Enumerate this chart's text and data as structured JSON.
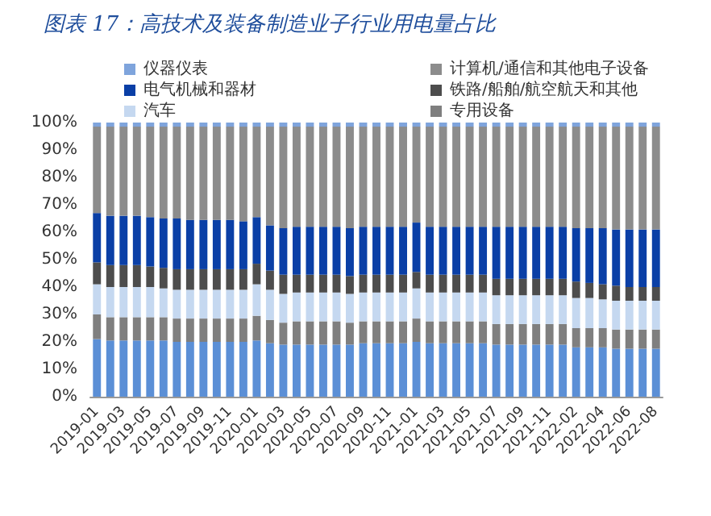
{
  "chart_data": {
    "type": "bar",
    "title": "图表 17：高技术及装备制造业子行业用电量占比",
    "stacked": true,
    "legend": "top",
    "grid": false,
    "categories": [
      "2019-01",
      null,
      "2019-03",
      null,
      "2019-05",
      null,
      "2019-07",
      null,
      "2019-09",
      null,
      "2019-11",
      null,
      "2020-01",
      null,
      "2020-03",
      null,
      "2020-05",
      null,
      "2020-07",
      null,
      "2020-09",
      null,
      "2020-11",
      null,
      "2021-01",
      null,
      "2021-03",
      null,
      "2021-05",
      null,
      "2021-07",
      null,
      "2021-09",
      null,
      "2021-11",
      null,
      "2022-02",
      null,
      "2022-04",
      null,
      "2022-06",
      null,
      "2022-08"
    ],
    "ylim": [
      0,
      100
    ],
    "yticks": [
      {
        "value": 0,
        "label": "0%"
      },
      {
        "value": 10,
        "label": "10%"
      },
      {
        "value": 20,
        "label": "20%"
      },
      {
        "value": 30,
        "label": "30%"
      },
      {
        "value": 40,
        "label": "40%"
      },
      {
        "value": 50,
        "label": "50%"
      },
      {
        "value": 60,
        "label": "60%"
      },
      {
        "value": 70,
        "label": "70%"
      },
      {
        "value": 80,
        "label": "80%"
      },
      {
        "value": 90,
        "label": "90%"
      },
      {
        "value": 100,
        "label": "100%"
      }
    ],
    "series": [
      {
        "color": "#5b8fd6",
        "values": [
          21,
          20.5,
          20.5,
          20.5,
          20.5,
          20.5,
          20,
          20,
          20,
          20,
          20,
          20,
          20.5,
          19.5,
          19,
          19,
          19,
          19,
          19,
          19,
          19.5,
          19.5,
          19.5,
          19.5,
          20,
          19.5,
          19.5,
          19.5,
          19.5,
          19.5,
          19,
          19,
          19,
          19,
          19,
          19,
          18,
          18,
          18,
          17.5,
          17.5,
          17.5,
          17.5
        ]
      },
      {
        "name": "专用设备",
        "color": "#7f7f7f",
        "values": [
          9,
          8.5,
          8.5,
          8.5,
          8.5,
          8.5,
          8.5,
          8.5,
          8.5,
          8.5,
          8.5,
          8.5,
          9,
          8.5,
          8,
          8.5,
          8.5,
          8.5,
          8.5,
          8,
          8,
          8,
          8,
          8,
          8.5,
          8,
          8,
          8,
          8,
          8,
          7.5,
          7.5,
          7.5,
          7.5,
          7.5,
          7.5,
          7,
          7,
          7,
          7,
          7,
          7,
          7
        ]
      },
      {
        "name": "汽车",
        "color": "#c5d8f0",
        "values": [
          11,
          11,
          11,
          11,
          11,
          10.5,
          10.5,
          10.5,
          10.5,
          10.5,
          10.5,
          10.5,
          11.5,
          11,
          10.5,
          10.5,
          10.5,
          10.5,
          10.5,
          10.5,
          10.5,
          10.5,
          10.5,
          10.5,
          11,
          10.5,
          10.5,
          10.5,
          10.5,
          10.5,
          10.5,
          10.5,
          10.5,
          10.5,
          10.5,
          10.5,
          11,
          11,
          10.5,
          10.5,
          10.5,
          10.5,
          10.5
        ]
      },
      {
        "name": "铁路/船舶/航空航天和其他",
        "color": "#4d4d4d",
        "values": [
          8,
          8,
          8,
          8,
          7.5,
          7.5,
          7.5,
          7.5,
          7.5,
          7.5,
          7.5,
          7.5,
          7.5,
          7,
          7,
          6.5,
          6.5,
          6.5,
          6.5,
          6.5,
          6.5,
          6.5,
          6.5,
          6.5,
          6,
          6.5,
          6.5,
          6.5,
          6.5,
          6.5,
          6,
          6,
          6,
          6,
          6,
          6,
          6,
          5.5,
          5.5,
          5.5,
          5,
          5,
          5
        ]
      },
      {
        "name": "电气机械和器材",
        "color": "#0a3fa6",
        "values": [
          18,
          18,
          18,
          18,
          18,
          18,
          18.5,
          18,
          18,
          18,
          18,
          17.5,
          17,
          16.5,
          17,
          17.5,
          17.5,
          17.5,
          17.5,
          17.5,
          17.5,
          17.5,
          17.5,
          17.5,
          18,
          17.5,
          17.5,
          17.5,
          17.5,
          17.5,
          19,
          19,
          19,
          19,
          19,
          19,
          19.5,
          20,
          20.5,
          20.5,
          21,
          21,
          21
        ]
      },
      {
        "name": "计算机/通信和其他电子设备",
        "color": "#8c8c8c",
        "values": [
          31.5,
          32.5,
          32.5,
          32.5,
          33,
          33.5,
          33.5,
          34,
          34,
          34,
          34,
          34.5,
          33,
          36,
          37,
          36.5,
          36.5,
          36.5,
          36.5,
          37,
          36.5,
          36.5,
          36.5,
          36.5,
          35,
          36.5,
          36.5,
          36.5,
          36.5,
          36.5,
          36.5,
          36.5,
          36.5,
          36.5,
          36.5,
          36.5,
          37,
          37,
          37,
          37.5,
          37.5,
          37.5,
          37.5
        ]
      },
      {
        "name": "仪器仪表",
        "color": "#7fa4dc",
        "values": [
          1.5,
          1.5,
          1.5,
          1.5,
          1.5,
          1.5,
          1.5,
          1.5,
          1.5,
          1.5,
          1.5,
          1.5,
          1.5,
          1.5,
          1.5,
          1.5,
          1.5,
          1.5,
          1.5,
          1.5,
          1.5,
          1.5,
          1.5,
          1.5,
          1.5,
          1.5,
          1.5,
          1.5,
          1.5,
          1.5,
          1.5,
          1.5,
          1.5,
          1.5,
          1.5,
          1.5,
          1.5,
          1.5,
          1.5,
          1.5,
          1.5,
          1.5,
          1.5
        ]
      }
    ]
  }
}
